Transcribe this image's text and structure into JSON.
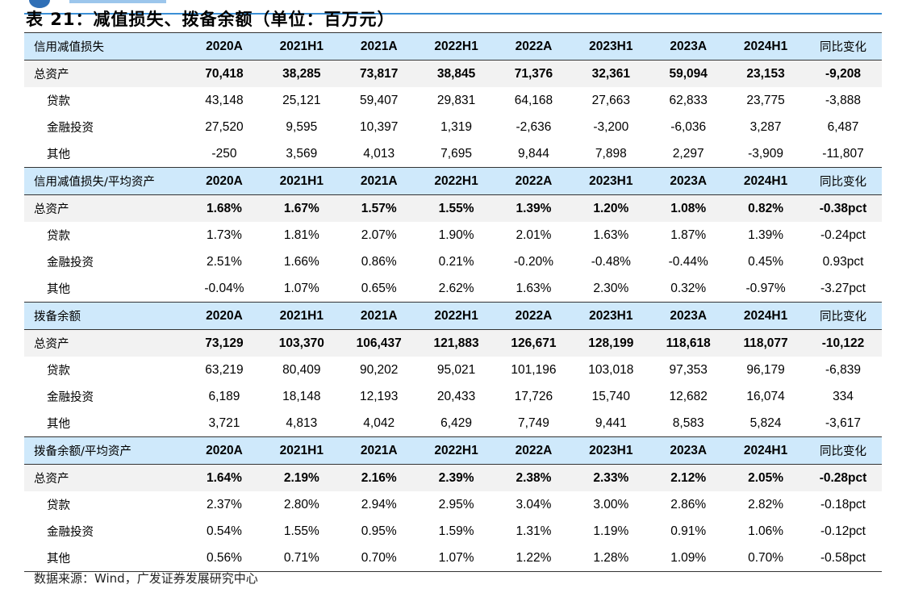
{
  "title": "表 21：减值损失、拨备余额（单位：百万元）",
  "columns": [
    "2020A",
    "2021H1",
    "2021A",
    "2022H1",
    "2022A",
    "2023H1",
    "2023A",
    "2024H1",
    "同比变化"
  ],
  "sections": [
    {
      "label": "信用减值损失",
      "rows": [
        {
          "label": "总资产",
          "values": [
            "70,418",
            "38,285",
            "73,817",
            "38,845",
            "71,376",
            "32,361",
            "59,094",
            "23,153",
            "-9,208"
          ]
        },
        {
          "label": "贷款",
          "values": [
            "43,148",
            "25,121",
            "59,407",
            "29,831",
            "64,168",
            "27,663",
            "62,833",
            "23,775",
            "-3,888"
          ]
        },
        {
          "label": "金融投资",
          "values": [
            "27,520",
            "9,595",
            "10,397",
            "1,319",
            "-2,636",
            "-3,200",
            "-6,036",
            "3,287",
            "6,487"
          ]
        },
        {
          "label": "其他",
          "values": [
            "-250",
            "3,569",
            "4,013",
            "7,695",
            "9,844",
            "7,898",
            "2,297",
            "-3,909",
            "-11,807"
          ]
        }
      ]
    },
    {
      "label": "信用减值损失/平均资产",
      "rows": [
        {
          "label": "总资产",
          "values": [
            "1.68%",
            "1.67%",
            "1.57%",
            "1.55%",
            "1.39%",
            "1.20%",
            "1.08%",
            "0.82%",
            "-0.38pct"
          ]
        },
        {
          "label": "贷款",
          "values": [
            "1.73%",
            "1.81%",
            "2.07%",
            "1.90%",
            "2.01%",
            "1.63%",
            "1.87%",
            "1.39%",
            "-0.24pct"
          ]
        },
        {
          "label": "金融投资",
          "values": [
            "2.51%",
            "1.66%",
            "0.86%",
            "0.21%",
            "-0.20%",
            "-0.48%",
            "-0.44%",
            "0.45%",
            "0.93pct"
          ]
        },
        {
          "label": "其他",
          "values": [
            "-0.04%",
            "1.07%",
            "0.65%",
            "2.62%",
            "1.63%",
            "2.30%",
            "0.32%",
            "-0.97%",
            "-3.27pct"
          ]
        }
      ]
    },
    {
      "label": "拨备余额",
      "rows": [
        {
          "label": "总资产",
          "values": [
            "73,129",
            "103,370",
            "106,437",
            "121,883",
            "126,671",
            "128,199",
            "118,618",
            "118,077",
            "-10,122"
          ]
        },
        {
          "label": "贷款",
          "values": [
            "63,219",
            "80,409",
            "90,202",
            "95,021",
            "101,196",
            "103,018",
            "97,353",
            "96,179",
            "-6,839"
          ]
        },
        {
          "label": "金融投资",
          "values": [
            "6,189",
            "18,148",
            "12,193",
            "20,433",
            "17,726",
            "15,740",
            "12,682",
            "16,074",
            "334"
          ]
        },
        {
          "label": "其他",
          "values": [
            "3,721",
            "4,813",
            "4,042",
            "6,429",
            "7,749",
            "9,441",
            "8,583",
            "5,824",
            "-3,617"
          ]
        }
      ]
    },
    {
      "label": "拨备余额/平均资产",
      "rows": [
        {
          "label": "总资产",
          "values": [
            "1.64%",
            "2.19%",
            "2.16%",
            "2.39%",
            "2.38%",
            "2.33%",
            "2.12%",
            "2.05%",
            "-0.28pct"
          ]
        },
        {
          "label": "贷款",
          "values": [
            "2.37%",
            "2.80%",
            "2.94%",
            "2.95%",
            "3.04%",
            "3.00%",
            "2.86%",
            "2.82%",
            "-0.18pct"
          ]
        },
        {
          "label": "金融投资",
          "values": [
            "0.54%",
            "1.55%",
            "0.95%",
            "1.59%",
            "1.31%",
            "1.19%",
            "0.91%",
            "1.06%",
            "-0.12pct"
          ]
        },
        {
          "label": "其他",
          "values": [
            "0.56%",
            "0.71%",
            "0.70%",
            "1.07%",
            "1.22%",
            "1.28%",
            "1.09%",
            "0.70%",
            "-0.58pct"
          ]
        }
      ]
    }
  ],
  "source": "数据来源：Wind，广发证券发展研究中心",
  "colors": {
    "header_bg": "#cfe9fb",
    "total_bg": "#f2f2f2",
    "accent": "#3a8fd6"
  }
}
